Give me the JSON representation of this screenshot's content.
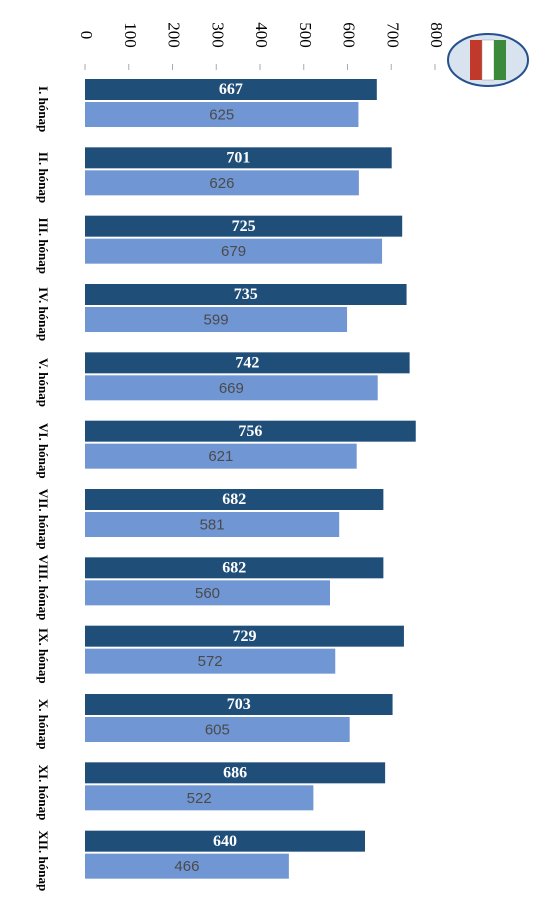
{
  "chart_data": {
    "type": "bar",
    "categories": [
      "I. hónap",
      "II. hónap",
      "III. hónap",
      "IV. hónap",
      "V. hónap",
      "VI. hónap",
      "VII. hónap",
      "VIII. hónap",
      "IX. hónap",
      "X. hónap",
      "XI. hónap",
      "XII. hónap"
    ],
    "series": [
      {
        "color": "#1f4e79",
        "values": [
          667,
          701,
          725,
          735,
          742,
          756,
          682,
          682,
          729,
          703,
          686,
          640
        ]
      },
      {
        "color": "#7196d4",
        "values": [
          625,
          626,
          679,
          599,
          669,
          621,
          581,
          560,
          572,
          605,
          522,
          466
        ]
      }
    ],
    "ylim": [
      0,
      800
    ],
    "yticks": [
      0,
      100,
      200,
      300,
      400,
      500,
      600,
      700,
      800
    ],
    "grid": false
  }
}
